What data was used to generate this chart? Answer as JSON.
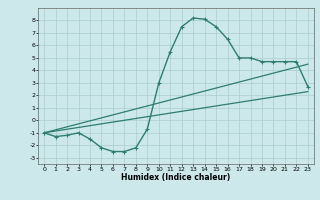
{
  "xlabel": "Humidex (Indice chaleur)",
  "background_color": "#cce8ea",
  "grid_color": "#aacccc",
  "line_color": "#2e7d6e",
  "xlim": [
    -0.5,
    23.5
  ],
  "ylim": [
    -3.5,
    9.0
  ],
  "xticks": [
    0,
    1,
    2,
    3,
    4,
    5,
    6,
    7,
    8,
    9,
    10,
    11,
    12,
    13,
    14,
    15,
    16,
    17,
    18,
    19,
    20,
    21,
    22,
    23
  ],
  "yticks": [
    -3,
    -2,
    -1,
    0,
    1,
    2,
    3,
    4,
    5,
    6,
    7,
    8
  ],
  "curve1_x": [
    0,
    1,
    2,
    3,
    4,
    5,
    6,
    7,
    8,
    9,
    10,
    11,
    12,
    13,
    14,
    15,
    16,
    17,
    18,
    19,
    20,
    21,
    22,
    23
  ],
  "curve1_y": [
    -1.0,
    -1.3,
    -1.2,
    -1.0,
    -1.5,
    -2.2,
    -2.5,
    -2.5,
    -2.2,
    -0.7,
    3.0,
    5.5,
    7.5,
    8.2,
    8.1,
    7.5,
    6.5,
    5.0,
    5.0,
    4.7,
    4.7,
    4.7,
    4.7,
    2.7
  ],
  "line1_x": [
    0,
    23
  ],
  "line1_y": [
    -1.0,
    4.5
  ],
  "line2_x": [
    0,
    23
  ],
  "line2_y": [
    -1.0,
    2.3
  ]
}
